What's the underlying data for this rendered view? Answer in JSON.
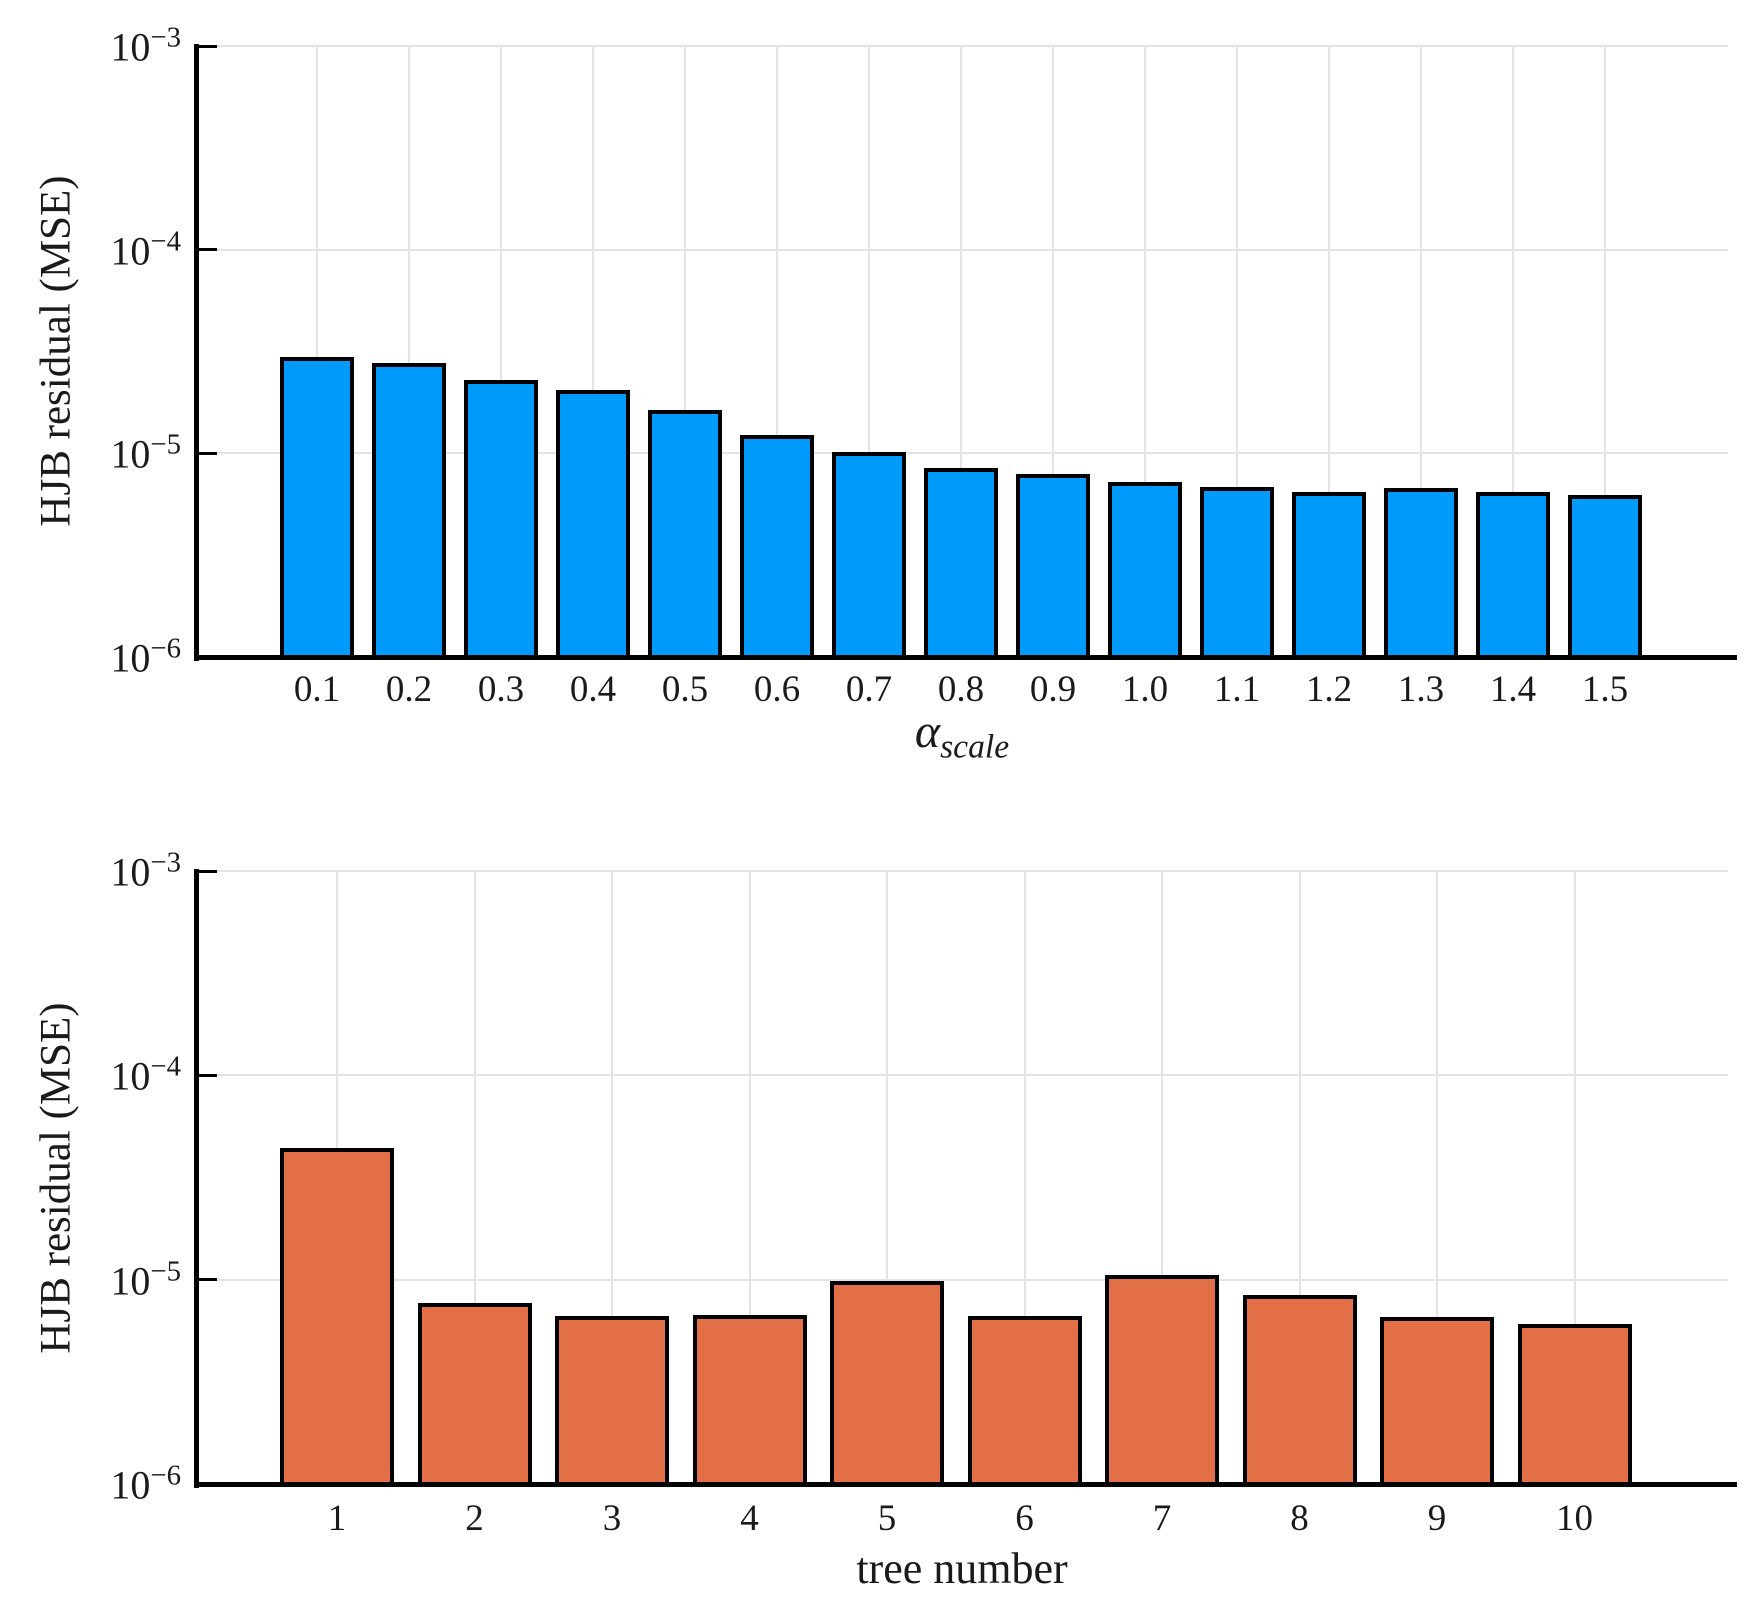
{
  "colors": {
    "background": "#FFFFFF",
    "grid": "#E3E3E3",
    "axis": "#000000",
    "text": "#1A1A1A",
    "series_blue": "#009AFA",
    "series_orange": "#E36F47"
  },
  "chart_data": [
    {
      "type": "bar",
      "title": "",
      "ylabel": "HJB residual (MSE)",
      "xlabel": {
        "main": "α",
        "sub": "scale"
      },
      "categories": [
        "0.1",
        "0.2",
        "0.3",
        "0.4",
        "0.5",
        "0.6",
        "0.7",
        "0.8",
        "0.9",
        "1.0",
        "1.1",
        "1.2",
        "1.3",
        "1.4",
        "1.5"
      ],
      "values": [
        2.9e-05,
        2.7e-05,
        2.25e-05,
        2e-05,
        1.6e-05,
        1.2e-05,
        9.9e-06,
        8.3e-06,
        7.7e-06,
        7.1e-06,
        6.7e-06,
        6.3e-06,
        6.6e-06,
        6.3e-06,
        6.1e-06
      ],
      "yscale": "log",
      "ylim": [
        1e-06,
        0.001
      ],
      "y_ticks": [
        {
          "base": "10",
          "exp": "−3",
          "value": 0.001
        },
        {
          "base": "10",
          "exp": "−4",
          "value": 0.0001
        },
        {
          "base": "10",
          "exp": "−5",
          "value": 1e-05
        },
        {
          "base": "10",
          "exp": "−6",
          "value": 1e-06
        }
      ],
      "grid": true,
      "legend": "none",
      "bar_color": "#009AFA",
      "bar_edge_color": "#000000"
    },
    {
      "type": "bar",
      "title": "",
      "ylabel": "HJB residual (MSE)",
      "xlabel": "tree number",
      "categories": [
        "1",
        "2",
        "3",
        "4",
        "5",
        "6",
        "7",
        "8",
        "9",
        "10"
      ],
      "values": [
        4.3e-05,
        7.5e-06,
        6.5e-06,
        6.6e-06,
        9.6e-06,
        6.5e-06,
        1.03e-05,
        8.2e-06,
        6.4e-06,
        5.9e-06
      ],
      "yscale": "log",
      "ylim": [
        1e-06,
        0.001
      ],
      "y_ticks": [
        {
          "base": "10",
          "exp": "−3",
          "value": 0.001
        },
        {
          "base": "10",
          "exp": "−4",
          "value": 0.0001
        },
        {
          "base": "10",
          "exp": "−5",
          "value": 1e-05
        },
        {
          "base": "10",
          "exp": "−6",
          "value": 1e-06
        }
      ],
      "grid": true,
      "legend": "none",
      "bar_color": "#E36F47",
      "bar_edge_color": "#000000"
    }
  ]
}
